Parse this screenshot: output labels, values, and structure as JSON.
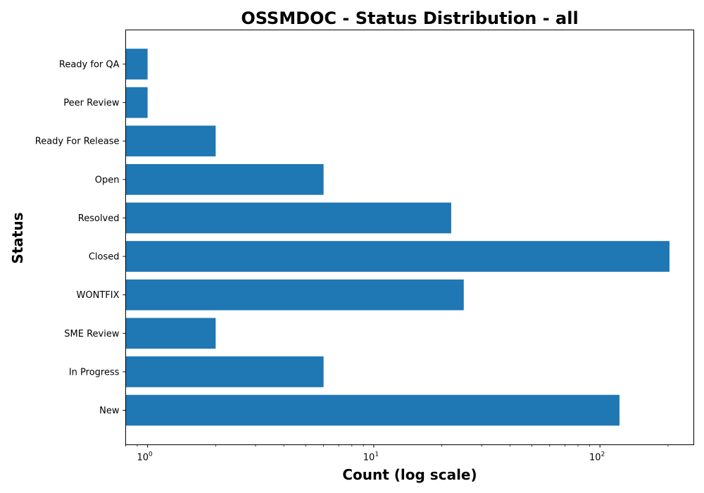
{
  "chart_data": {
    "type": "bar",
    "orientation": "horizontal",
    "title": "OSSMDOC - Status Distribution - all",
    "xlabel": "Count (log scale)",
    "ylabel": "Status",
    "x_scale": "log",
    "xlim": [
      0.8,
      260
    ],
    "categories": [
      "New",
      "In Progress",
      "SME Review",
      "WONTFIX",
      "Closed",
      "Resolved",
      "Open",
      "Ready For Release",
      "Peer Review",
      "Ready for QA"
    ],
    "values": [
      122,
      6,
      2,
      25,
      203,
      22,
      6,
      2,
      1,
      1
    ],
    "x_ticks": [
      {
        "base": "10",
        "exp": "0",
        "value": 1
      },
      {
        "base": "10",
        "exp": "1",
        "value": 10
      },
      {
        "base": "10",
        "exp": "2",
        "value": 100
      }
    ],
    "bar_color": "#1f77b4",
    "grid": false,
    "legend": "none"
  }
}
